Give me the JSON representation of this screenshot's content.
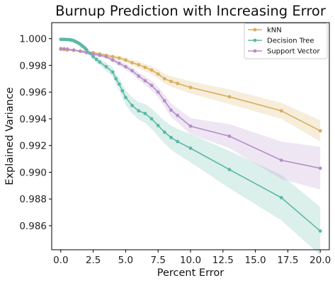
{
  "chart_data": {
    "type": "line",
    "title": "Burnup Prediction with Increasing Error",
    "xlabel": "Percent Error",
    "ylabel": "Explained Variance",
    "xlim": [
      -0.7,
      20.7
    ],
    "ylim": [
      0.9842,
      1.0012
    ],
    "xticks": [
      0.0,
      2.5,
      5.0,
      7.5,
      10.0,
      12.5,
      15.0,
      17.5,
      20.0
    ],
    "xtick_labels": [
      "0.0",
      "2.5",
      "5.0",
      "7.5",
      "10.0",
      "12.5",
      "15.0",
      "17.5",
      "20.0"
    ],
    "yticks": [
      0.986,
      0.988,
      0.99,
      0.992,
      0.994,
      0.996,
      0.998,
      1.0
    ],
    "ytick_labels": [
      "0.986",
      "0.988",
      "0.990",
      "0.992",
      "0.994",
      "0.996",
      "0.998",
      "1.000"
    ],
    "grid": false,
    "legend_position": "top-right",
    "series": [
      {
        "name": "kNN",
        "color": "#d9ae5d",
        "x": [
          0.0,
          0.25,
          0.5,
          1.0,
          1.5,
          2.0,
          2.5,
          3.0,
          3.5,
          4.0,
          4.5,
          5.0,
          5.5,
          6.0,
          6.5,
          7.0,
          7.5,
          8.0,
          8.5,
          9.0,
          10.0,
          13.0,
          17.0,
          20.0
        ],
        "y": [
          0.9992,
          0.99918,
          0.99915,
          0.99912,
          0.99908,
          0.99903,
          0.99895,
          0.99885,
          0.99875,
          0.99865,
          0.99855,
          0.9984,
          0.9982,
          0.99805,
          0.99785,
          0.99765,
          0.99735,
          0.997,
          0.9968,
          0.99665,
          0.99635,
          0.99565,
          0.9946,
          0.9931
        ],
        "lower": [
          0.99915,
          0.99913,
          0.9991,
          0.99906,
          0.99902,
          0.99896,
          0.99886,
          0.99874,
          0.99862,
          0.9985,
          0.99838,
          0.9982,
          0.99798,
          0.9978,
          0.99758,
          0.99735,
          0.99702,
          0.99663,
          0.9964,
          0.99623,
          0.9959,
          0.9951,
          0.994,
          0.9923
        ],
        "upper": [
          0.99925,
          0.99923,
          0.9992,
          0.99918,
          0.99914,
          0.9991,
          0.99904,
          0.99896,
          0.99888,
          0.9988,
          0.99872,
          0.9986,
          0.99842,
          0.9983,
          0.99812,
          0.99795,
          0.99768,
          0.99737,
          0.9972,
          0.99707,
          0.9968,
          0.9962,
          0.9952,
          0.9939
        ]
      },
      {
        "name": "Decision Tree",
        "color": "#5ab8a6",
        "x": [
          0.0,
          0.1,
          0.2,
          0.3,
          0.4,
          0.5,
          0.6,
          0.7,
          0.8,
          0.9,
          1.0,
          1.1,
          1.2,
          1.3,
          1.4,
          1.5,
          1.6,
          1.7,
          1.8,
          1.9,
          2.0,
          2.25,
          2.5,
          2.75,
          3.0,
          3.5,
          4.0,
          4.25,
          4.5,
          4.75,
          5.0,
          5.5,
          6.0,
          6.5,
          7.0,
          7.5,
          8.0,
          8.5,
          9.0,
          10.0,
          13.0,
          17.0,
          20.0
        ],
        "y": [
          0.99995,
          0.99995,
          0.99995,
          0.99994,
          0.99994,
          0.99993,
          0.99993,
          0.99992,
          0.9999,
          0.99988,
          0.99985,
          0.9998,
          0.99975,
          0.9997,
          0.99965,
          0.99958,
          0.9995,
          0.99942,
          0.99935,
          0.99925,
          0.99915,
          0.9989,
          0.99865,
          0.99845,
          0.99825,
          0.9979,
          0.9975,
          0.997,
          0.9966,
          0.9961,
          0.9956,
          0.995,
          0.9946,
          0.9944,
          0.994,
          0.9935,
          0.993,
          0.9926,
          0.9923,
          0.9918,
          0.9902,
          0.9881,
          0.9856
        ],
        "lower": [
          0.99993,
          0.99993,
          0.99993,
          0.99992,
          0.99992,
          0.99991,
          0.9999,
          0.99989,
          0.99987,
          0.99984,
          0.99981,
          0.99975,
          0.99969,
          0.99963,
          0.99957,
          0.99949,
          0.9994,
          0.99931,
          0.99923,
          0.99912,
          0.99901,
          0.99873,
          0.99845,
          0.99822,
          0.998,
          0.9976,
          0.99715,
          0.9966,
          0.99615,
          0.9956,
          0.99505,
          0.9944,
          0.99395,
          0.9937,
          0.99325,
          0.9927,
          0.99215,
          0.9917,
          0.99135,
          0.99075,
          0.9888,
          0.9864,
          0.9838
        ],
        "upper": [
          0.99997,
          0.99997,
          0.99997,
          0.99996,
          0.99996,
          0.99995,
          0.99996,
          0.99995,
          0.99993,
          0.99992,
          0.99989,
          0.99985,
          0.99981,
          0.99977,
          0.99973,
          0.99967,
          0.9996,
          0.99953,
          0.99947,
          0.99938,
          0.99929,
          0.99907,
          0.99885,
          0.99868,
          0.9985,
          0.9982,
          0.99785,
          0.9974,
          0.99705,
          0.9966,
          0.99615,
          0.9956,
          0.99525,
          0.9951,
          0.99475,
          0.9943,
          0.99385,
          0.9935,
          0.99325,
          0.99285,
          0.9916,
          0.9898,
          0.9874
        ]
      },
      {
        "name": "Support Vector",
        "color": "#b48dc8",
        "x": [
          0.0,
          0.25,
          0.5,
          1.0,
          1.5,
          2.0,
          2.5,
          3.0,
          3.5,
          4.0,
          4.5,
          5.0,
          5.5,
          6.0,
          6.5,
          7.0,
          7.5,
          8.0,
          8.5,
          9.0,
          10.0,
          13.0,
          17.0,
          20.0
        ],
        "y": [
          0.99925,
          0.99924,
          0.99922,
          0.99915,
          0.99905,
          0.99895,
          0.99885,
          0.99875,
          0.99865,
          0.9984,
          0.99815,
          0.9979,
          0.9976,
          0.9972,
          0.99685,
          0.9965,
          0.996,
          0.99535,
          0.99465,
          0.99425,
          0.99345,
          0.9927,
          0.9909,
          0.9903
        ],
        "lower": [
          0.99918,
          0.99917,
          0.99915,
          0.99907,
          0.99896,
          0.99885,
          0.99874,
          0.99862,
          0.9985,
          0.99823,
          0.99796,
          0.99768,
          0.99735,
          0.99692,
          0.99654,
          0.99615,
          0.9956,
          0.9949,
          0.99415,
          0.99372,
          0.99285,
          0.9918,
          0.9895,
          0.9887
        ],
        "upper": [
          0.99932,
          0.99931,
          0.99929,
          0.99923,
          0.99914,
          0.99905,
          0.99896,
          0.99888,
          0.9988,
          0.99857,
          0.99834,
          0.99812,
          0.99785,
          0.99748,
          0.99716,
          0.99685,
          0.9964,
          0.9958,
          0.99515,
          0.99478,
          0.99405,
          0.9936,
          0.9923,
          0.9919
        ]
      }
    ]
  }
}
